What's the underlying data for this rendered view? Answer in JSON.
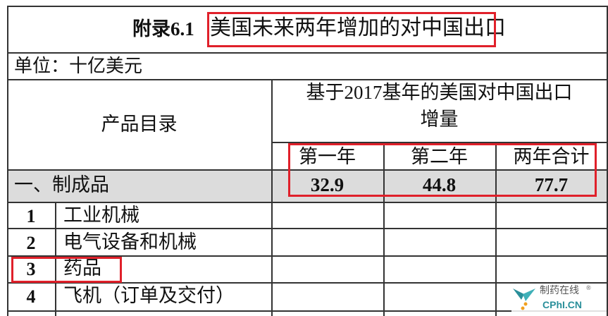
{
  "table": {
    "appendix_label": "附录6.1",
    "title": "美国未来两年增加的对中国出口",
    "unit": "单位：十亿美元",
    "col_product": "产品目录",
    "col_group": "基于2017基年的美国对中国出口增量",
    "col_group_line1": "基于2017基年的美国对中国出口",
    "col_group_line2": "增量",
    "years": [
      "第一年",
      "第二年",
      "两年合计"
    ],
    "category": {
      "label": "一、制成品",
      "values": [
        "32.9",
        "44.8",
        "77.7"
      ]
    },
    "rows": [
      {
        "num": "1",
        "label": "工业机械"
      },
      {
        "num": "2",
        "label": "电气设备和机械"
      },
      {
        "num": "3",
        "label": "药品"
      },
      {
        "num": "4",
        "label": "飞机（订单及交付）"
      }
    ]
  },
  "watermark": {
    "text_cn": "制药在线",
    "text_en": "CPhI.CN",
    "registered": "®"
  },
  "colors": {
    "highlight": "#e0202a",
    "category_bg": "#dcdcdc",
    "watermark_teal": "#2a8f9a",
    "watermark_orange": "#f0a020"
  }
}
